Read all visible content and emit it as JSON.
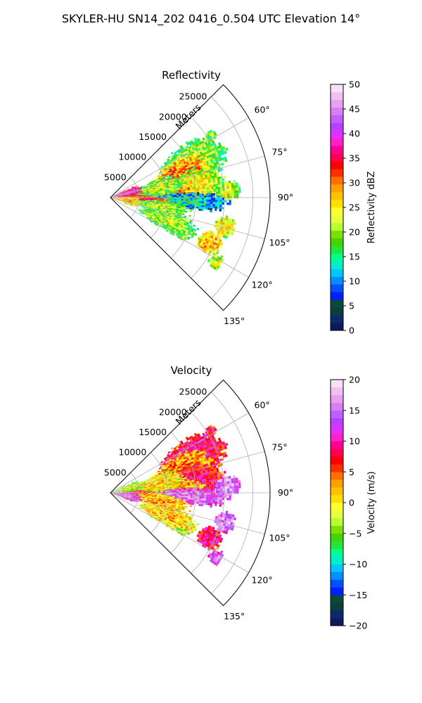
{
  "figure": {
    "suptitle": "SKYLER-HU  SN14_202  0416_0.504 UTC Elevation 14°"
  },
  "chart_data": [
    {
      "type": "heatmap",
      "title": "Reflectivity",
      "radial_label": "Meters",
      "radial_ticks": [
        5000,
        10000,
        15000,
        20000,
        25000
      ],
      "radial_tick_labels": [
        "5000",
        "10000",
        "15000",
        "20000",
        "25000"
      ],
      "rmax": 28000,
      "azimuth_range_deg": [
        45,
        135
      ],
      "azimuth_ticks": [
        60,
        75,
        90,
        105,
        120,
        135
      ],
      "azimuth_tick_labels": [
        "60°",
        "75°",
        "90°",
        "105°",
        "120°",
        "135°"
      ],
      "grid": true,
      "colorbar": {
        "label": "Reflectivity dBZ",
        "range": [
          0,
          50
        ],
        "ticks": [
          0,
          5,
          10,
          15,
          20,
          25,
          30,
          35,
          40,
          45,
          50
        ],
        "tick_labels": [
          "0",
          "5",
          "10",
          "15",
          "20",
          "25",
          "30",
          "35",
          "40",
          "45",
          "50"
        ],
        "colors": [
          "#0a1a5a",
          "#0b2a6e",
          "#0f3d3a",
          "#0a4a3a",
          "#0020ff",
          "#0050ff",
          "#0090ff",
          "#00c8ff",
          "#00eec8",
          "#00ff90",
          "#22e63a",
          "#44d400",
          "#7ee000",
          "#b8ff30",
          "#e6ff40",
          "#ffff30",
          "#ffe000",
          "#ffc000",
          "#ffa000",
          "#ff7000",
          "#ff3000",
          "#ff0000",
          "#ff0050",
          "#ff0090",
          "#ff20c8",
          "#e030ff",
          "#b840ff",
          "#c060ff",
          "#d880f0",
          "#e8a0f0",
          "#f0c0f0",
          "#f8e0f8"
        ]
      },
      "echoes": [
        {
          "az": 58,
          "r": 20500,
          "dr": 1000,
          "dphi": 2,
          "value": 21
        },
        {
          "az": 66,
          "r": 15500,
          "dr": 5000,
          "dphi": 10,
          "value": 22
        },
        {
          "az": 72,
          "r": 13000,
          "dr": 4500,
          "dphi": 10,
          "value": 31
        },
        {
          "az": 80,
          "r": 15000,
          "dr": 4000,
          "dphi": 8,
          "value": 25
        },
        {
          "az": 86,
          "r": 20500,
          "dr": 2000,
          "dphi": 4,
          "value": 23
        },
        {
          "az": 88,
          "r": 10000,
          "dr": 5500,
          "dphi": 8,
          "value": 30
        },
        {
          "az": 92,
          "r": 12000,
          "dr": 7000,
          "dphi": 5,
          "value": 14
        },
        {
          "az": 94,
          "r": 7000,
          "dr": 3000,
          "dphi": 4,
          "value": 36
        },
        {
          "az": 84,
          "r": 5000,
          "dr": 3000,
          "dphi": 6,
          "value": 33
        },
        {
          "az": 78,
          "r": 8000,
          "dr": 4000,
          "dphi": 8,
          "value": 22
        },
        {
          "az": 100,
          "r": 8500,
          "dr": 4500,
          "dphi": 6,
          "value": 22
        },
        {
          "az": 104,
          "r": 20500,
          "dr": 1500,
          "dphi": 4,
          "value": 26
        },
        {
          "az": 112,
          "r": 10500,
          "dr": 4500,
          "dphi": 7,
          "value": 22
        },
        {
          "az": 114,
          "r": 19000,
          "dr": 1800,
          "dphi": 5,
          "value": 29
        },
        {
          "az": 121,
          "r": 21500,
          "dr": 1000,
          "dphi": 3,
          "value": 24
        },
        {
          "az": 118,
          "r": 14000,
          "dr": 1000,
          "dphi": 2,
          "value": 20
        },
        {
          "az": 75,
          "r": 2500,
          "dr": 2500,
          "dphi": 10,
          "value": 40
        },
        {
          "az": 100,
          "r": 2500,
          "dr": 2500,
          "dphi": 10,
          "value": 28
        }
      ]
    },
    {
      "type": "heatmap",
      "title": "Velocity",
      "radial_label": "Meters",
      "radial_ticks": [
        5000,
        10000,
        15000,
        20000,
        25000
      ],
      "radial_tick_labels": [
        "5000",
        "10000",
        "15000",
        "20000",
        "25000"
      ],
      "rmax": 28000,
      "azimuth_range_deg": [
        45,
        135
      ],
      "azimuth_ticks": [
        60,
        75,
        90,
        105,
        120,
        135
      ],
      "azimuth_tick_labels": [
        "60°",
        "75°",
        "90°",
        "105°",
        "120°",
        "135°"
      ],
      "grid": true,
      "colorbar": {
        "label": "Velocity (m/s)",
        "range": [
          -20,
          20
        ],
        "ticks": [
          -20,
          -15,
          -10,
          -5,
          0,
          5,
          10,
          15,
          20
        ],
        "tick_labels": [
          "−20",
          "−15",
          "−10",
          "−5",
          "0",
          "5",
          "10",
          "15",
          "20"
        ],
        "colors": [
          "#0a1a5a",
          "#0b2a6e",
          "#0f3d3a",
          "#0a4a3a",
          "#0020ff",
          "#0050ff",
          "#0090ff",
          "#00c8ff",
          "#00eec8",
          "#00ff90",
          "#22e63a",
          "#44d400",
          "#7ee000",
          "#b8ff30",
          "#e6ff40",
          "#ffff30",
          "#ffe000",
          "#ffc000",
          "#ffa000",
          "#ff7000",
          "#ff3000",
          "#ff0000",
          "#ff0050",
          "#ff0090",
          "#ff20c8",
          "#e030ff",
          "#b840ff",
          "#c060ff",
          "#d880f0",
          "#e8a0f0",
          "#f0c0f0",
          "#f8e0f8"
        ]
      },
      "echoes": [
        {
          "az": 58,
          "r": 20500,
          "dr": 1000,
          "dphi": 2,
          "value": 8
        },
        {
          "az": 66,
          "r": 15500,
          "dr": 5000,
          "dphi": 10,
          "value": 10
        },
        {
          "az": 72,
          "r": 13000,
          "dr": 4500,
          "dphi": 10,
          "value": 4
        },
        {
          "az": 80,
          "r": 15000,
          "dr": 4000,
          "dphi": 8,
          "value": 9
        },
        {
          "az": 86,
          "r": 20500,
          "dr": 2000,
          "dphi": 4,
          "value": 16
        },
        {
          "az": 88,
          "r": 10000,
          "dr": 5500,
          "dphi": 8,
          "value": 3
        },
        {
          "az": 92,
          "r": 12000,
          "dr": 7000,
          "dphi": 5,
          "value": 15
        },
        {
          "az": 94,
          "r": 7000,
          "dr": 3000,
          "dphi": 4,
          "value": 2
        },
        {
          "az": 84,
          "r": 5000,
          "dr": 3000,
          "dphi": 6,
          "value": 6
        },
        {
          "az": 78,
          "r": 8000,
          "dr": 4000,
          "dphi": 8,
          "value": 1
        },
        {
          "az": 100,
          "r": 8500,
          "dr": 4500,
          "dphi": 6,
          "value": 3
        },
        {
          "az": 104,
          "r": 20500,
          "dr": 1500,
          "dphi": 4,
          "value": 16
        },
        {
          "az": 112,
          "r": 10500,
          "dr": 4500,
          "dphi": 7,
          "value": 2
        },
        {
          "az": 114,
          "r": 19000,
          "dr": 1800,
          "dphi": 5,
          "value": 10
        },
        {
          "az": 121,
          "r": 21500,
          "dr": 1000,
          "dphi": 3,
          "value": 15
        },
        {
          "az": 118,
          "r": 14000,
          "dr": 1000,
          "dphi": 2,
          "value": -3
        },
        {
          "az": 75,
          "r": 2500,
          "dr": 2500,
          "dphi": 10,
          "value": -2
        },
        {
          "az": 100,
          "r": 2500,
          "dr": 2500,
          "dphi": 10,
          "value": 14
        }
      ]
    }
  ]
}
